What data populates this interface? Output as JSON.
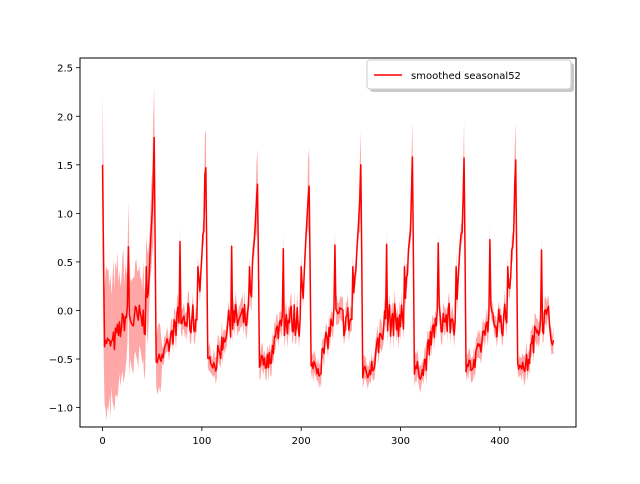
{
  "chart_data": {
    "type": "line",
    "title": "",
    "xlabel": "",
    "ylabel": "",
    "xlim": [
      -22.7,
      476.7
    ],
    "ylim": [
      -1.2,
      2.6
    ],
    "x_ticks": [
      0,
      100,
      200,
      300,
      400
    ],
    "x_tick_labels": [
      "0",
      "100",
      "200",
      "300",
      "400"
    ],
    "y_ticks": [
      -1.0,
      -0.5,
      0.0,
      0.5,
      1.0,
      1.5,
      2.0,
      2.5
    ],
    "y_tick_labels": [
      "−1.0",
      "−0.5",
      "0.0",
      "0.5",
      "1.0",
      "1.5",
      "2.0",
      "2.5"
    ],
    "grid": false,
    "legend": {
      "position": "top-right",
      "entries": [
        "smoothed seasonal52"
      ]
    },
    "series": [
      {
        "name": "smoothed seasonal52",
        "color": "#ff0000",
        "band_color": "#ff0000",
        "period": 52,
        "n_points": 455,
        "cycle_start_values": [
          1.5,
          1.75,
          1.45,
          1.3,
          1.27,
          1.5,
          1.58,
          1.57,
          1.55
        ],
        "peak_values": [
          1.5,
          1.78,
          1.47,
          1.3,
          1.28,
          1.5,
          1.58,
          1.57,
          1.55
        ],
        "trough_values": [
          -0.35,
          -0.5,
          -0.55,
          -0.55,
          -0.6,
          -0.65,
          -0.65,
          -0.6,
          -0.6
        ],
        "band_half_width_initial": 0.6,
        "band_half_width_later": 0.12,
        "end_value": -0.33
      }
    ]
  }
}
